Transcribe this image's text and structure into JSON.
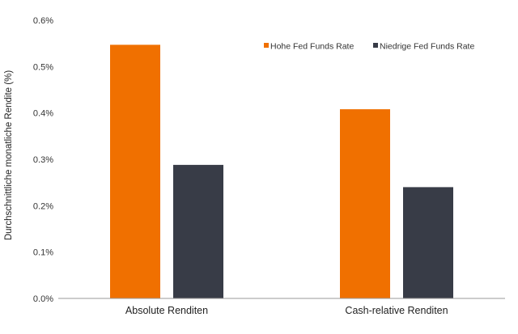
{
  "chart_data": {
    "type": "bar",
    "ylabel": "Durchschnittliche monatliche Rendite (%)",
    "categories": [
      "Absolute Renditen",
      "Cash-relative Renditen"
    ],
    "series": [
      {
        "name": "Hohe Fed Funds Rate",
        "color": "#f07000",
        "values": [
          0.547,
          0.408
        ]
      },
      {
        "name": "Niedrige Fed Funds Rate",
        "color": "#383c47",
        "values": [
          0.288,
          0.24
        ]
      }
    ],
    "ylim": [
      0,
      0.6
    ],
    "yticks": [
      "0.0%",
      "0.1%",
      "0.2%",
      "0.3%",
      "0.4%",
      "0.5%",
      "0.6%"
    ],
    "grid": false,
    "legend_position": "top-right"
  }
}
